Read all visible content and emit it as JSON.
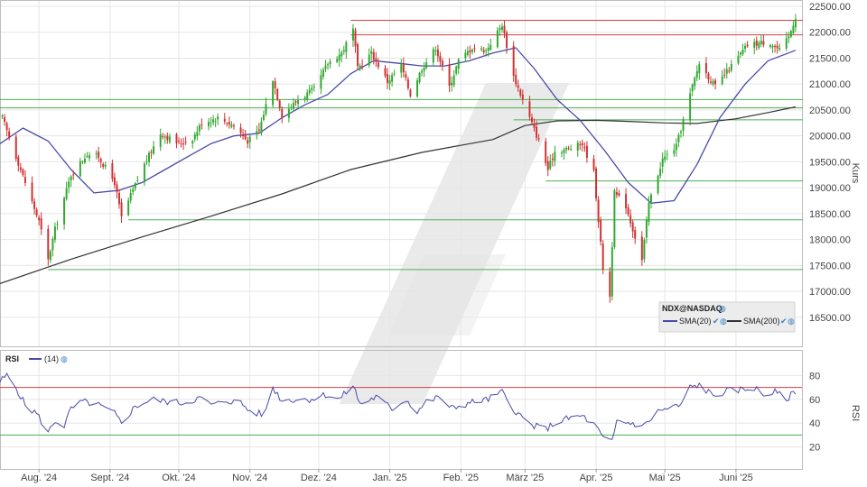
{
  "chart_data": [
    {
      "type": "candlestick",
      "title": "",
      "symbol": "NDX@NASDAQ",
      "ylabel": "Kurs",
      "ylim": [
        16200,
        22500
      ],
      "yticks": [
        "16500.00",
        "17000.00",
        "17500.00",
        "18000.00",
        "18500.00",
        "19000.00",
        "19500.00",
        "20000.00",
        "20500.00",
        "21000.00",
        "21500.00",
        "22000.00",
        "22500.00"
      ],
      "xlabels": [
        "Aug. '24",
        "Sept. '24",
        "Okt. '24",
        "Nov. '24",
        "Dez. '24",
        "Jan. '25",
        "Feb. '25",
        "März '25",
        "Apr. '25",
        "Mai '25",
        "Juni '25"
      ],
      "legend": {
        "symbol": "NDX@NASDAQ",
        "sma20": "SMA(20)",
        "sma200": "SMA(200)"
      },
      "colors": {
        "up": "#2ea82e",
        "down": "#d03030",
        "sma20": "#4a4aa8",
        "sma200": "#333333",
        "support": "#4caf50",
        "resistance": "#d94040",
        "grid": "#e6e6e6"
      },
      "horizontal_lines": [
        {
          "kind": "resistance",
          "value": 22230,
          "from_date": "2024-12-15"
        },
        {
          "kind": "resistance",
          "value": 21950,
          "from_date": "2024-12-15"
        },
        {
          "kind": "support",
          "value": 20700,
          "from_date": "2024-07-15"
        },
        {
          "kind": "support",
          "value": 20540,
          "from_date": "2024-07-15"
        },
        {
          "kind": "support",
          "value": 20310,
          "from_date": "2025-02-24"
        },
        {
          "kind": "support",
          "value": 19130,
          "from_date": "2025-03-10"
        },
        {
          "kind": "support",
          "value": 18380,
          "from_date": "2024-09-09"
        },
        {
          "kind": "support",
          "value": 17420,
          "from_date": "2024-08-05"
        }
      ],
      "series": [
        {
          "name": "NDX@NASDAQ",
          "points": [
            [
              "2024-07-16",
              20350
            ],
            [
              "2024-07-22",
              19600
            ],
            [
              "2024-07-26",
              19100
            ],
            [
              "2024-08-01",
              18350
            ],
            [
              "2024-08-05",
              17600
            ],
            [
              "2024-08-08",
              18200
            ],
            [
              "2024-08-15",
              19250
            ],
            [
              "2024-08-22",
              19650
            ],
            [
              "2024-08-27",
              19600
            ],
            [
              "2024-09-03",
              19100
            ],
            [
              "2024-09-06",
              18420
            ],
            [
              "2024-09-10",
              18850
            ],
            [
              "2024-09-16",
              19450
            ],
            [
              "2024-09-23",
              20050
            ],
            [
              "2024-10-01",
              19850
            ],
            [
              "2024-10-07",
              19950
            ],
            [
              "2024-10-11",
              20250
            ],
            [
              "2024-10-18",
              20350
            ],
            [
              "2024-10-25",
              20200
            ],
            [
              "2024-10-31",
              19900
            ],
            [
              "2024-11-05",
              20100
            ],
            [
              "2024-11-11",
              21100
            ],
            [
              "2024-11-15",
              20400
            ],
            [
              "2024-11-22",
              20700
            ],
            [
              "2024-11-29",
              20900
            ],
            [
              "2024-12-05",
              21400
            ],
            [
              "2024-12-11",
              21600
            ],
            [
              "2024-12-16",
              22050
            ],
            [
              "2024-12-18",
              21300
            ],
            [
              "2024-12-24",
              21600
            ],
            [
              "2024-12-31",
              21050
            ],
            [
              "2025-01-06",
              21350
            ],
            [
              "2025-01-10",
              20800
            ],
            [
              "2025-01-15",
              21300
            ],
            [
              "2025-01-21",
              21700
            ],
            [
              "2025-01-27",
              20950
            ],
            [
              "2025-01-31",
              21450
            ],
            [
              "2025-02-06",
              21700
            ],
            [
              "2025-02-12",
              21650
            ],
            [
              "2025-02-19",
              22150
            ],
            [
              "2025-02-24",
              21150
            ],
            [
              "2025-03-03",
              20350
            ],
            [
              "2025-03-07",
              19900
            ],
            [
              "2025-03-11",
              19350
            ],
            [
              "2025-03-14",
              19700
            ],
            [
              "2025-03-20",
              19750
            ],
            [
              "2025-03-26",
              19850
            ],
            [
              "2025-03-31",
              19300
            ],
            [
              "2025-04-04",
              17450
            ],
            [
              "2025-04-07",
              16900
            ],
            [
              "2025-04-09",
              18900
            ],
            [
              "2025-04-14",
              18650
            ],
            [
              "2025-04-21",
              17600
            ],
            [
              "2025-04-24",
              18700
            ],
            [
              "2025-04-30",
              19550
            ],
            [
              "2025-05-06",
              19800
            ],
            [
              "2025-05-12",
              20800
            ],
            [
              "2025-05-16",
              21400
            ],
            [
              "2025-05-23",
              20950
            ],
            [
              "2025-05-30",
              21350
            ],
            [
              "2025-06-06",
              21750
            ],
            [
              "2025-06-12",
              21800
            ],
            [
              "2025-06-16",
              21800
            ],
            [
              "2025-06-20",
              21650
            ],
            [
              "2025-06-24",
              21900
            ],
            [
              "2025-06-27",
              22300
            ]
          ]
        },
        {
          "name": "SMA(20)",
          "points": [
            [
              "2024-07-15",
              19850
            ],
            [
              "2024-07-25",
              20150
            ],
            [
              "2024-08-05",
              19900
            ],
            [
              "2024-08-15",
              19350
            ],
            [
              "2024-08-25",
              18900
            ],
            [
              "2024-09-05",
              18950
            ],
            [
              "2024-09-15",
              19100
            ],
            [
              "2024-09-25",
              19350
            ],
            [
              "2024-10-05",
              19600
            ],
            [
              "2024-10-15",
              19850
            ],
            [
              "2024-10-25",
              20000
            ],
            [
              "2024-11-05",
              20050
            ],
            [
              "2024-11-15",
              20350
            ],
            [
              "2024-11-25",
              20600
            ],
            [
              "2024-12-05",
              20800
            ],
            [
              "2024-12-15",
              21200
            ],
            [
              "2024-12-25",
              21450
            ],
            [
              "2025-01-05",
              21400
            ],
            [
              "2025-01-15",
              21350
            ],
            [
              "2025-01-25",
              21350
            ],
            [
              "2025-02-05",
              21450
            ],
            [
              "2025-02-15",
              21600
            ],
            [
              "2025-02-25",
              21700
            ],
            [
              "2025-03-05",
              21300
            ],
            [
              "2025-03-15",
              20700
            ],
            [
              "2025-03-25",
              20300
            ],
            [
              "2025-04-05",
              19700
            ],
            [
              "2025-04-15",
              19100
            ],
            [
              "2025-04-25",
              18700
            ],
            [
              "2025-05-05",
              18750
            ],
            [
              "2025-05-15",
              19450
            ],
            [
              "2025-05-25",
              20350
            ],
            [
              "2025-06-05",
              21000
            ],
            [
              "2025-06-15",
              21450
            ],
            [
              "2025-06-27",
              21650
            ]
          ]
        },
        {
          "name": "SMA(200)",
          "points": [
            [
              "2024-07-15",
              17150
            ],
            [
              "2024-08-15",
              17620
            ],
            [
              "2024-09-15",
              18050
            ],
            [
              "2024-10-15",
              18450
            ],
            [
              "2024-11-15",
              18880
            ],
            [
              "2024-12-15",
              19350
            ],
            [
              "2025-01-15",
              19680
            ],
            [
              "2025-02-15",
              19930
            ],
            [
              "2025-03-01",
              20200
            ],
            [
              "2025-03-15",
              20290
            ],
            [
              "2025-04-01",
              20300
            ],
            [
              "2025-04-15",
              20280
            ],
            [
              "2025-05-01",
              20250
            ],
            [
              "2025-05-15",
              20240
            ],
            [
              "2025-06-01",
              20330
            ],
            [
              "2025-06-15",
              20450
            ],
            [
              "2025-06-27",
              20560
            ]
          ]
        }
      ]
    },
    {
      "type": "line",
      "title": "",
      "name": "RSI",
      "period": "(14)",
      "ylabel": "RSI",
      "ylim": [
        0,
        100
      ],
      "yticks": [
        "20",
        "40",
        "60",
        "80"
      ],
      "reference_lines": [
        70,
        30
      ],
      "series": [
        {
          "name": "RSI (14)",
          "points": [
            [
              "2024-07-15",
              75
            ],
            [
              "2024-07-18",
              80
            ],
            [
              "2024-07-22",
              70
            ],
            [
              "2024-07-26",
              55
            ],
            [
              "2024-07-31",
              48
            ],
            [
              "2024-08-05",
              32
            ],
            [
              "2024-08-08",
              42
            ],
            [
              "2024-08-12",
              38
            ],
            [
              "2024-08-15",
              52
            ],
            [
              "2024-08-20",
              58
            ],
            [
              "2024-08-26",
              56
            ],
            [
              "2024-09-03",
              48
            ],
            [
              "2024-09-06",
              40
            ],
            [
              "2024-09-12",
              54
            ],
            [
              "2024-09-19",
              60
            ],
            [
              "2024-09-26",
              58
            ],
            [
              "2024-10-03",
              57
            ],
            [
              "2024-10-10",
              61
            ],
            [
              "2024-10-16",
              55
            ],
            [
              "2024-10-22",
              59
            ],
            [
              "2024-10-28",
              57
            ],
            [
              "2024-11-01",
              50
            ],
            [
              "2024-11-07",
              47
            ],
            [
              "2024-11-11",
              70
            ],
            [
              "2024-11-15",
              59
            ],
            [
              "2024-11-21",
              60
            ],
            [
              "2024-11-27",
              60
            ],
            [
              "2024-12-04",
              64
            ],
            [
              "2024-12-10",
              60
            ],
            [
              "2024-12-16",
              72
            ],
            [
              "2024-12-19",
              56
            ],
            [
              "2024-12-26",
              62
            ],
            [
              "2025-01-02",
              52
            ],
            [
              "2025-01-08",
              60
            ],
            [
              "2025-01-13",
              50
            ],
            [
              "2025-01-17",
              58
            ],
            [
              "2025-01-23",
              62
            ],
            [
              "2025-01-27",
              52
            ],
            [
              "2025-02-03",
              56
            ],
            [
              "2025-02-07",
              58
            ],
            [
              "2025-02-13",
              60
            ],
            [
              "2025-02-19",
              66
            ],
            [
              "2025-02-24",
              52
            ],
            [
              "2025-02-28",
              44
            ],
            [
              "2025-03-04",
              38
            ],
            [
              "2025-03-10",
              35
            ],
            [
              "2025-03-14",
              40
            ],
            [
              "2025-03-20",
              44
            ],
            [
              "2025-03-26",
              46
            ],
            [
              "2025-04-01",
              37
            ],
            [
              "2025-04-04",
              27
            ],
            [
              "2025-04-08",
              24
            ],
            [
              "2025-04-10",
              42
            ],
            [
              "2025-04-16",
              40
            ],
            [
              "2025-04-22",
              38
            ],
            [
              "2025-04-28",
              50
            ],
            [
              "2025-05-02",
              52
            ],
            [
              "2025-05-08",
              55
            ],
            [
              "2025-05-12",
              70
            ],
            [
              "2025-05-16",
              72
            ],
            [
              "2025-05-22",
              63
            ],
            [
              "2025-05-28",
              67
            ],
            [
              "2025-06-03",
              68
            ],
            [
              "2025-06-09",
              70
            ],
            [
              "2025-06-13",
              64
            ],
            [
              "2025-06-18",
              66
            ],
            [
              "2025-06-23",
              60
            ],
            [
              "2025-06-27",
              67
            ]
          ]
        }
      ]
    }
  ]
}
